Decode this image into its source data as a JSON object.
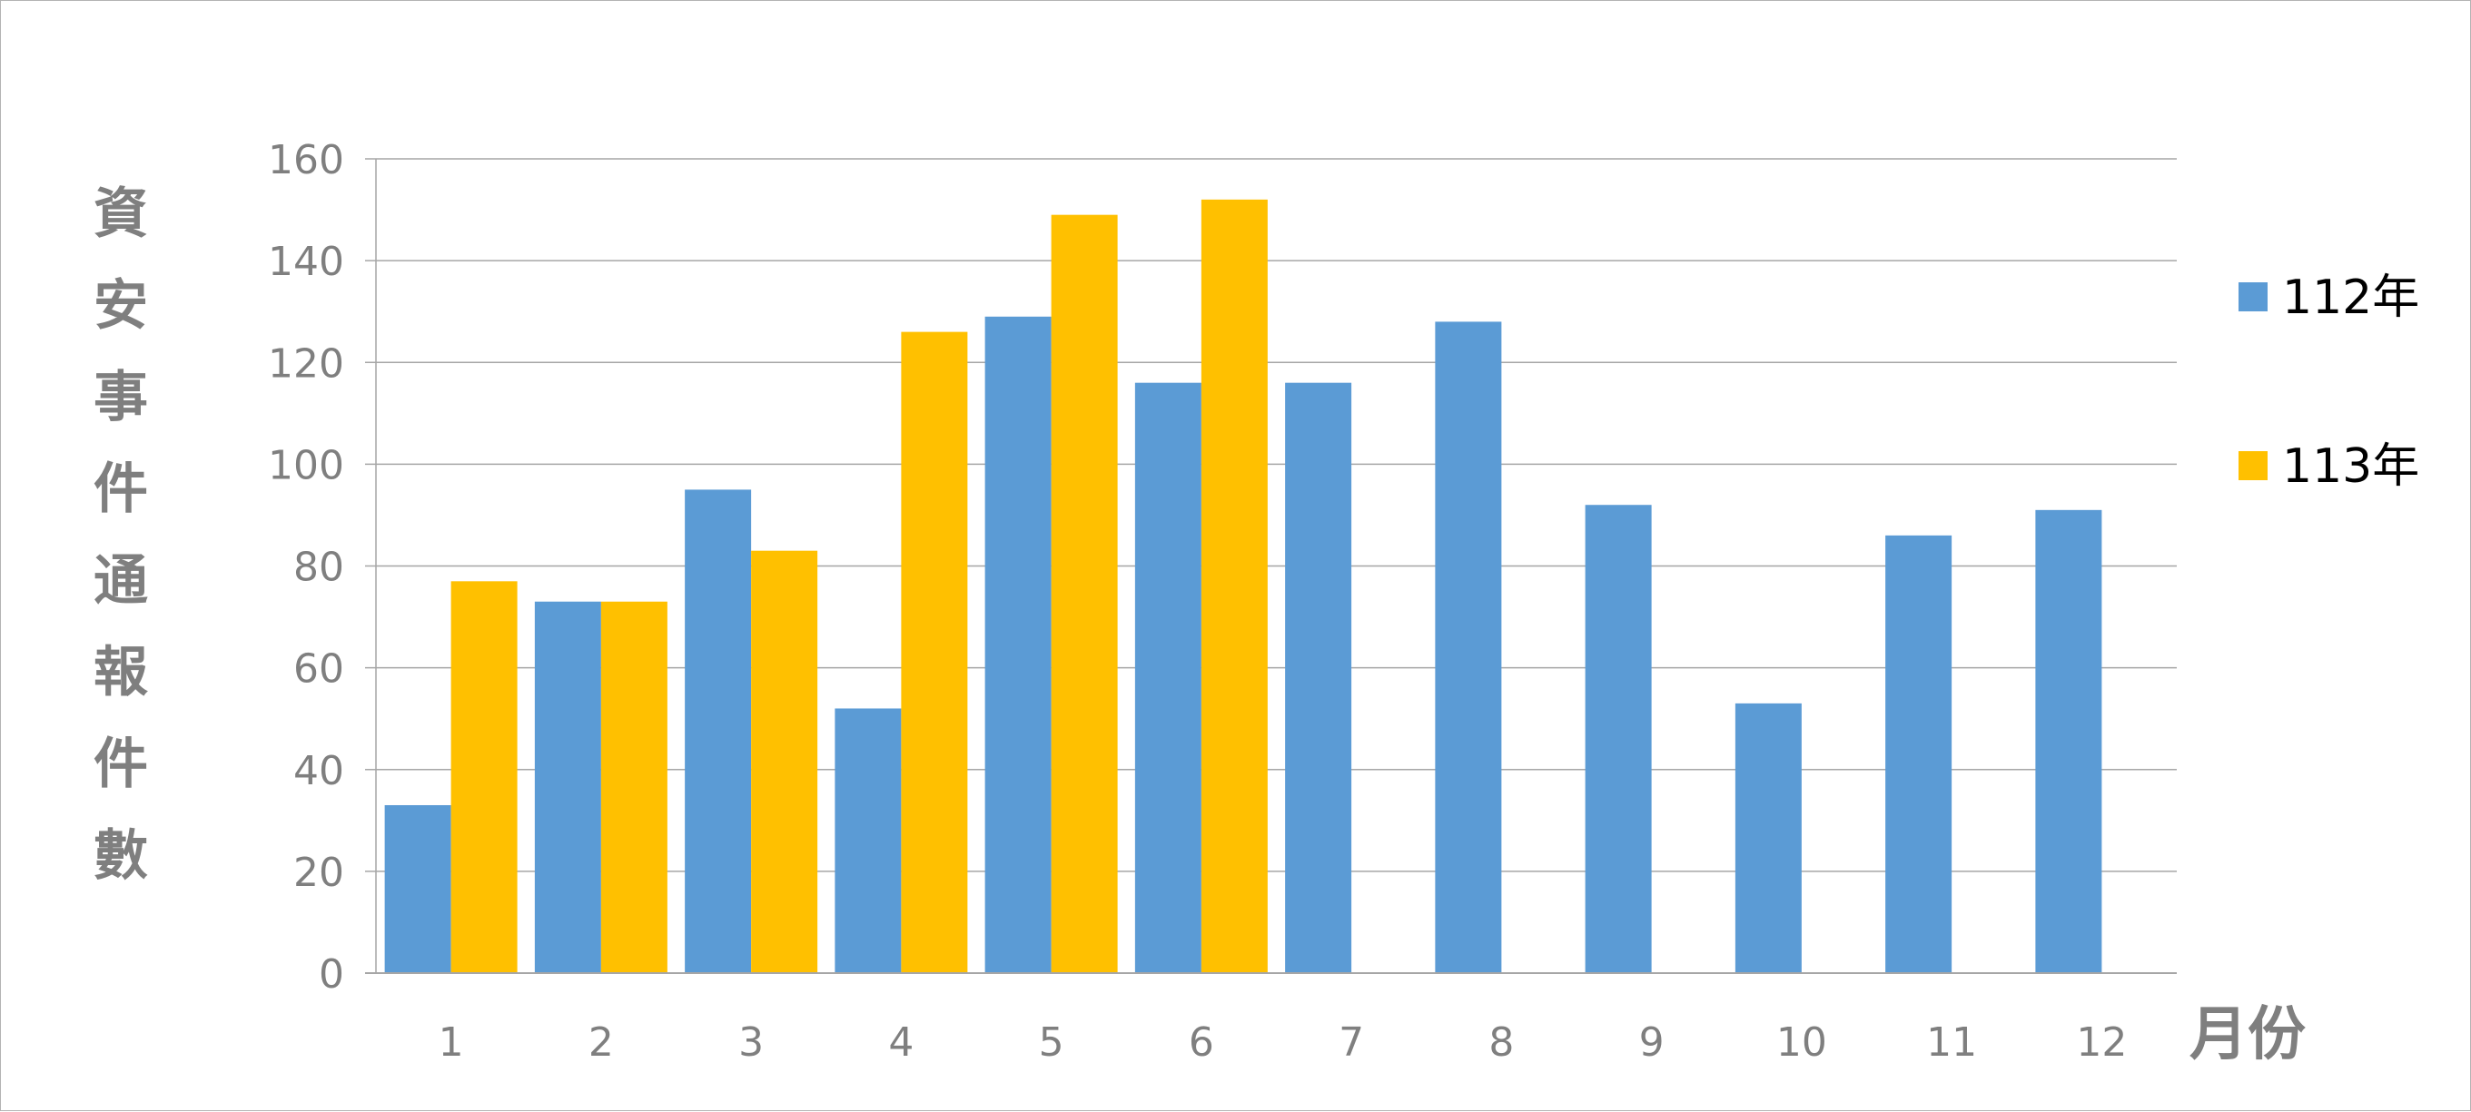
{
  "chart_data": {
    "type": "bar",
    "title": "",
    "ylabel": "資安事件通報件數",
    "xlabel": "月份",
    "categories": [
      "1",
      "2",
      "3",
      "4",
      "5",
      "6",
      "7",
      "8",
      "9",
      "10",
      "11",
      "12"
    ],
    "series": [
      {
        "name": "112年",
        "color": "#5b9bd5",
        "values": [
          33,
          73,
          95,
          52,
          129,
          116,
          116,
          128,
          92,
          53,
          86,
          91
        ]
      },
      {
        "name": "113年",
        "color": "#ffc000",
        "values": [
          77,
          73,
          83,
          126,
          149,
          152,
          null,
          null,
          null,
          null,
          null,
          null
        ]
      }
    ],
    "ylim": [
      0,
      160
    ],
    "yticks": [
      0,
      20,
      40,
      60,
      80,
      100,
      120,
      140,
      160
    ],
    "grid": true,
    "legend_position": "right"
  }
}
